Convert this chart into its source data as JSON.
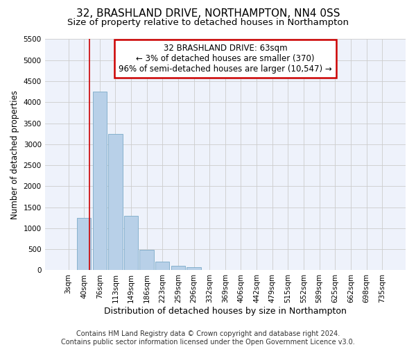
{
  "title": "32, BRASHLAND DRIVE, NORTHAMPTON, NN4 0SS",
  "subtitle": "Size of property relative to detached houses in Northampton",
  "xlabel": "Distribution of detached houses by size in Northampton",
  "ylabel": "Number of detached properties",
  "footer_line1": "Contains HM Land Registry data © Crown copyright and database right 2024.",
  "footer_line2": "Contains public sector information licensed under the Open Government Licence v3.0.",
  "categories": [
    "3sqm",
    "40sqm",
    "76sqm",
    "113sqm",
    "149sqm",
    "186sqm",
    "223sqm",
    "259sqm",
    "296sqm",
    "332sqm",
    "369sqm",
    "406sqm",
    "442sqm",
    "479sqm",
    "515sqm",
    "552sqm",
    "589sqm",
    "625sqm",
    "662sqm",
    "698sqm",
    "735sqm"
  ],
  "bar_values": [
    0,
    1250,
    4250,
    3250,
    1300,
    490,
    210,
    100,
    70,
    0,
    0,
    0,
    0,
    0,
    0,
    0,
    0,
    0,
    0,
    0,
    0
  ],
  "bar_color": "#b8d0e8",
  "bar_edge_color": "#7aaac8",
  "grid_color": "#cccccc",
  "background_color": "#ffffff",
  "plot_bg_color": "#eef2fb",
  "ylim": [
    0,
    5500
  ],
  "yticks": [
    0,
    500,
    1000,
    1500,
    2000,
    2500,
    3000,
    3500,
    4000,
    4500,
    5000,
    5500
  ],
  "annotation_line1": "32 BRASHLAND DRIVE: 63sqm",
  "annotation_line2": "← 3% of detached houses are smaller (370)",
  "annotation_line3": "96% of semi-detached houses are larger (10,547) →",
  "annotation_box_color": "#ffffff",
  "annotation_border_color": "#cc0000",
  "property_line_x": 1.35,
  "property_line_color": "#cc0000",
  "title_fontsize": 11,
  "subtitle_fontsize": 9.5,
  "xlabel_fontsize": 9,
  "ylabel_fontsize": 8.5,
  "tick_fontsize": 7.5,
  "annotation_fontsize": 8.5,
  "footer_fontsize": 7
}
